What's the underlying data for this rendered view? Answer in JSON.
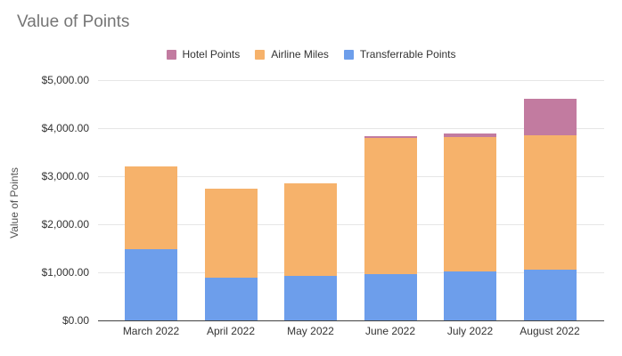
{
  "title": "Value of Points",
  "legend": [
    {
      "label": "Hotel Points",
      "color": "#c27ba0"
    },
    {
      "label": "Airline Miles",
      "color": "#f6b26b"
    },
    {
      "label": "Transferrable Points",
      "color": "#6d9eeb"
    }
  ],
  "chart_data": {
    "type": "bar",
    "stacked": true,
    "title": "Value of Points",
    "ylabel": "Value of Points",
    "xlabel": "",
    "categories": [
      "March 2022",
      "April 2022",
      "May 2022",
      "June 2022",
      "July 2022",
      "August 2022"
    ],
    "series": [
      {
        "name": "Transferrable Points",
        "color": "#6d9eeb",
        "values": [
          1490,
          880,
          925,
          965,
          1010,
          1055
        ]
      },
      {
        "name": "Airline Miles",
        "color": "#f6b26b",
        "values": [
          1710,
          1865,
          1925,
          2840,
          2810,
          2805
        ]
      },
      {
        "name": "Hotel Points",
        "color": "#c27ba0",
        "values": [
          0,
          0,
          0,
          25,
          70,
          745
        ]
      }
    ],
    "totals": [
      3200,
      2745,
      2850,
      3830,
      3890,
      4605
    ],
    "ylim": [
      0,
      5000
    ],
    "ytick_step": 1000,
    "ytick_labels": [
      "$0.00",
      "$1,000.00",
      "$2,000.00",
      "$3,000.00",
      "$4,000.00",
      "$5,000.00"
    ],
    "grid": true,
    "legend_position": "top",
    "colors": {
      "grid": "#e6e6e6",
      "axis_line": "#424242",
      "title_text": "#757575",
      "tick_text": "#333333",
      "axis_title_text": "#555555",
      "background": "#ffffff"
    }
  }
}
